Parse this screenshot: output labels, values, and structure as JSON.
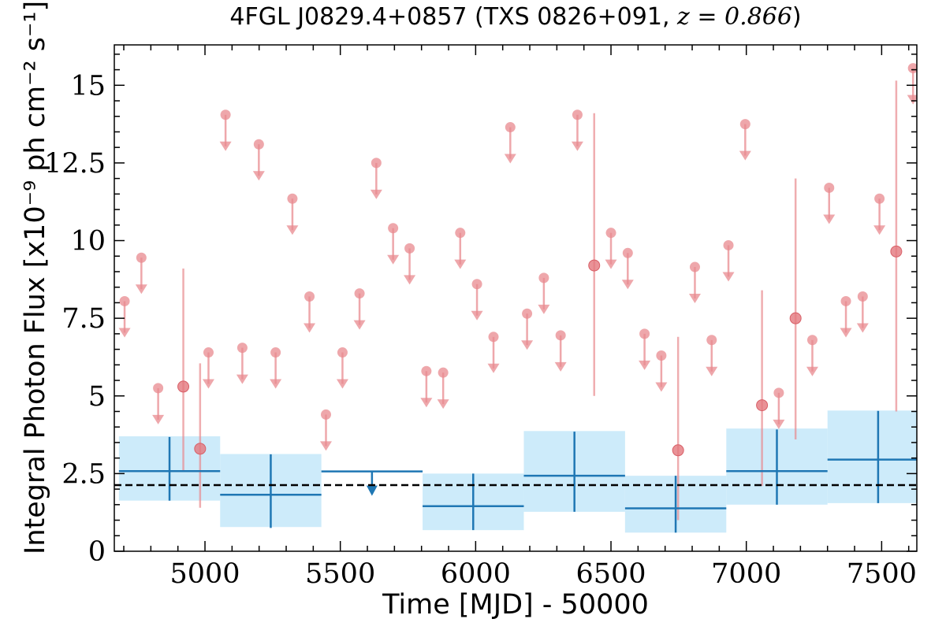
{
  "chart_data": {
    "type": "scatter",
    "title": {
      "main": "4FGL J0829.4+0857 (TXS 0826+091, ",
      "z": "z = 0.866",
      "close": ")"
    },
    "xlabel": "Time [MJD] - 50000",
    "ylabel": "Integral Photon Flux [x10⁻⁹ ph cm⁻² s⁻¹]",
    "xlim": [
      4665,
      7630
    ],
    "ylim": [
      0,
      16.3
    ],
    "x_ticks": [
      5000,
      5500,
      6000,
      6500,
      7000,
      7500
    ],
    "x_tick_labels": [
      "5000",
      "5500",
      "6000",
      "6500",
      "7000",
      "7500"
    ],
    "y_ticks": [
      0,
      2.5,
      5,
      7.5,
      10,
      12.5,
      15
    ],
    "y_tick_labels": [
      "0",
      "2.5",
      "5",
      "7.5",
      "10",
      "12.5",
      "15"
    ],
    "grid": false,
    "mean_flux_line": 2.13,
    "colors": {
      "short_bins": "#e88a8f",
      "long_bins": "#1f77b4",
      "long_bins_band": "#cdebfa",
      "mean_line": "#000000"
    },
    "series": [
      {
        "upper_limits": [
          {
            "x": 4703,
            "y": 8.05
          },
          {
            "x": 4765,
            "y": 9.45
          },
          {
            "x": 4827,
            "y": 5.25
          },
          {
            "x": 5013,
            "y": 6.4
          },
          {
            "x": 5076,
            "y": 14.05
          },
          {
            "x": 5138,
            "y": 6.55
          },
          {
            "x": 5199,
            "y": 13.1
          },
          {
            "x": 5261,
            "y": 6.4
          },
          {
            "x": 5323,
            "y": 11.35
          },
          {
            "x": 5386,
            "y": 8.2
          },
          {
            "x": 5447,
            "y": 4.4
          },
          {
            "x": 5508,
            "y": 6.4
          },
          {
            "x": 5571,
            "y": 8.3
          },
          {
            "x": 5633,
            "y": 12.5
          },
          {
            "x": 5695,
            "y": 10.4
          },
          {
            "x": 5756,
            "y": 9.75
          },
          {
            "x": 5818,
            "y": 5.8
          },
          {
            "x": 5880,
            "y": 5.75
          },
          {
            "x": 5943,
            "y": 10.25
          },
          {
            "x": 6005,
            "y": 8.6
          },
          {
            "x": 6066,
            "y": 6.9
          },
          {
            "x": 6128,
            "y": 13.65
          },
          {
            "x": 6190,
            "y": 7.65
          },
          {
            "x": 6252,
            "y": 8.8
          },
          {
            "x": 6314,
            "y": 6.95
          },
          {
            "x": 6376,
            "y": 14.05
          },
          {
            "x": 6500,
            "y": 10.25
          },
          {
            "x": 6562,
            "y": 9.6
          },
          {
            "x": 6624,
            "y": 7.0
          },
          {
            "x": 6686,
            "y": 6.3
          },
          {
            "x": 6810,
            "y": 9.15
          },
          {
            "x": 6872,
            "y": 6.8
          },
          {
            "x": 6934,
            "y": 9.85
          },
          {
            "x": 6996,
            "y": 13.75
          },
          {
            "x": 7120,
            "y": 5.1
          },
          {
            "x": 7244,
            "y": 6.8
          },
          {
            "x": 7306,
            "y": 11.7
          },
          {
            "x": 7368,
            "y": 8.05
          },
          {
            "x": 7430,
            "y": 8.2
          },
          {
            "x": 7492,
            "y": 11.35
          },
          {
            "x": 7616,
            "y": 15.55
          }
        ],
        "detections": [
          {
            "x": 4920,
            "y": 5.3,
            "ylo": 2.6,
            "yhi": 9.1
          },
          {
            "x": 4982,
            "y": 3.3,
            "ylo": 1.4,
            "yhi": 6.05
          },
          {
            "x": 6438,
            "y": 9.2,
            "ylo": 5.0,
            "yhi": 14.1
          },
          {
            "x": 6748,
            "y": 3.25,
            "ylo": 1.0,
            "yhi": 6.9
          },
          {
            "x": 7058,
            "y": 4.7,
            "ylo": 2.1,
            "yhi": 8.4
          },
          {
            "x": 7182,
            "y": 7.5,
            "ylo": 3.6,
            "yhi": 12.0
          },
          {
            "x": 7554,
            "y": 9.65,
            "ylo": 4.5,
            "yhi": 15.15
          }
        ]
      },
      {
        "bins": [
          {
            "x0": 4682,
            "x1": 5056,
            "xc": 4869,
            "y": 2.58,
            "ylo": 1.63,
            "yhi": 3.68,
            "blo": 1.63,
            "bhi": 3.7
          },
          {
            "x0": 5056,
            "x1": 5430,
            "xc": 5243,
            "y": 1.82,
            "ylo": 0.75,
            "yhi": 3.12,
            "blo": 0.78,
            "bhi": 3.13
          },
          {
            "x0": 5804,
            "x1": 6178,
            "xc": 5991,
            "y": 1.45,
            "ylo": 0.68,
            "yhi": 2.5,
            "blo": 0.68,
            "bhi": 2.5
          },
          {
            "x0": 6178,
            "x1": 6552,
            "xc": 6365,
            "y": 2.43,
            "ylo": 1.27,
            "yhi": 3.85,
            "blo": 1.27,
            "bhi": 3.87
          },
          {
            "x0": 6552,
            "x1": 6926,
            "xc": 6739,
            "y": 1.38,
            "ylo": 0.6,
            "yhi": 2.43,
            "blo": 0.6,
            "bhi": 2.43
          },
          {
            "x0": 6926,
            "x1": 7300,
            "xc": 7113,
            "y": 2.58,
            "ylo": 1.5,
            "yhi": 3.92,
            "blo": 1.5,
            "bhi": 3.95
          },
          {
            "x0": 7300,
            "x1": 7674,
            "xc": 7487,
            "y": 2.95,
            "ylo": 1.55,
            "yhi": 4.52,
            "blo": 1.55,
            "bhi": 4.53
          }
        ],
        "upper_limits": [
          {
            "x0": 5430,
            "x1": 5804,
            "xc": 5617,
            "y": 2.57
          }
        ]
      }
    ]
  }
}
